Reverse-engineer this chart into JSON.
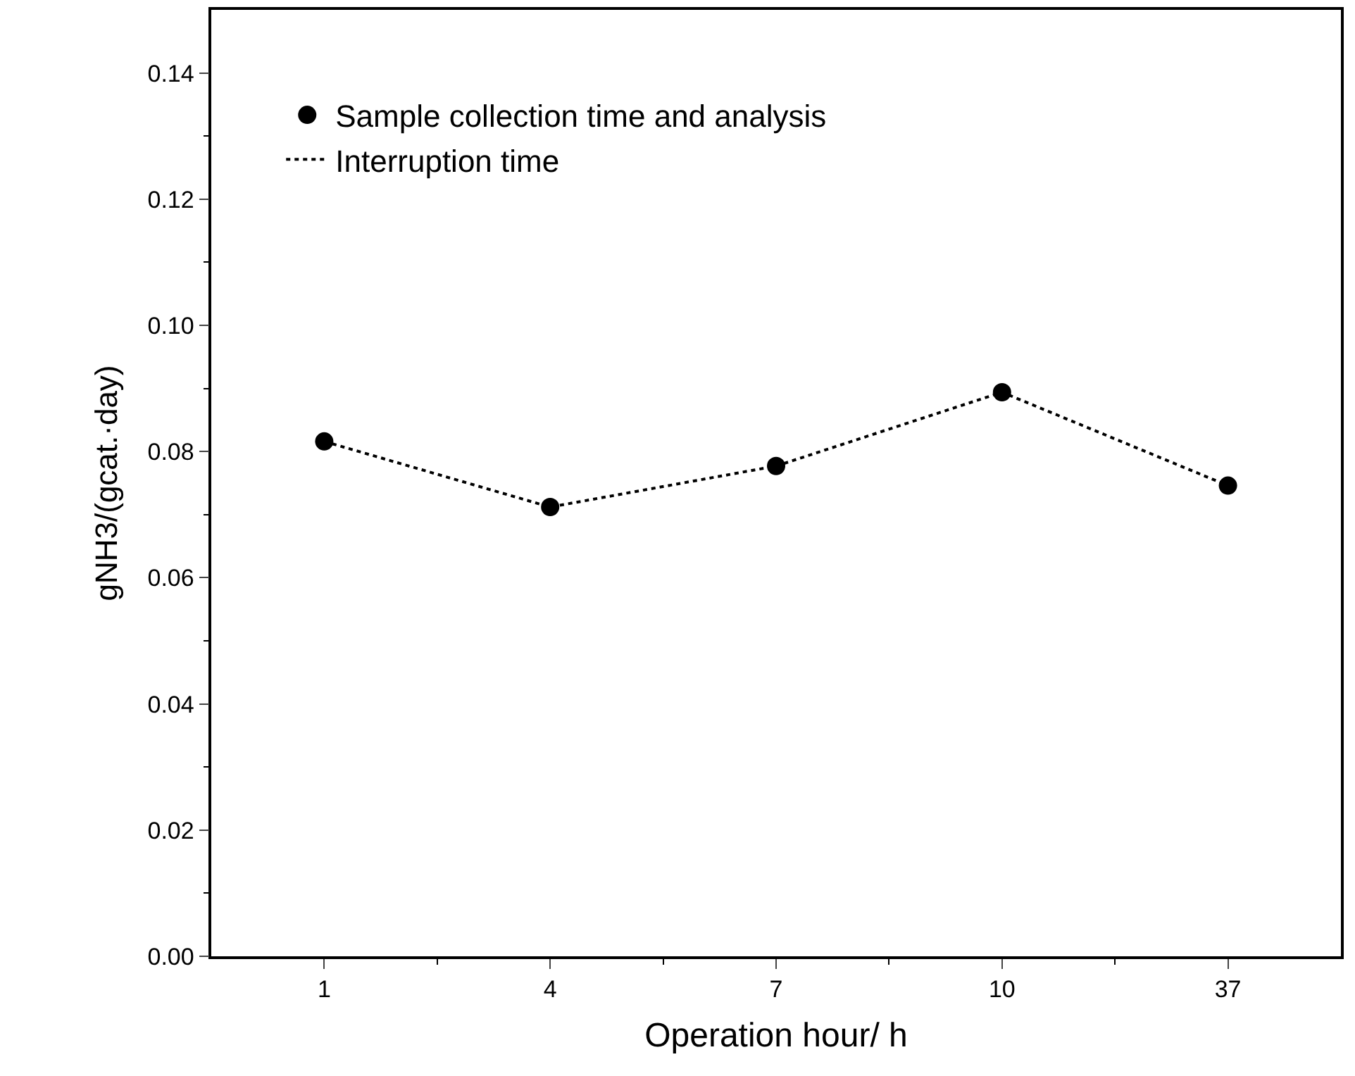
{
  "chart_data": {
    "type": "line",
    "xlabel": "Operation hour/ h",
    "ylabel": "gNH3/(gcat.·day)",
    "categories": [
      "1",
      "4",
      "7",
      "10",
      "37"
    ],
    "series": [
      {
        "name": "Sample collection time and analysis",
        "type": "scatter",
        "color": "#000000",
        "marker": "circle",
        "values": [
          0.0816,
          0.0712,
          0.0777,
          0.0894,
          0.0746
        ]
      },
      {
        "name": "Interruption time",
        "color": "#000000",
        "line_style": "dotted",
        "marker": "none",
        "values": [
          0.0816,
          0.0712,
          0.0777,
          0.0894,
          0.0746
        ]
      }
    ],
    "ylim": [
      0,
      0.15
    ],
    "yticks": [
      {
        "value": 0,
        "label": "0.00"
      },
      {
        "value": 0.02,
        "label": "0.02"
      },
      {
        "value": 0.04,
        "label": "0.04"
      },
      {
        "value": 0.06,
        "label": "0.06"
      },
      {
        "value": 0.08,
        "label": "0.08"
      },
      {
        "value": 0.1,
        "label": "0.10"
      },
      {
        "value": 0.12,
        "label": "0.12"
      },
      {
        "value": 0.14,
        "label": "0.14"
      }
    ],
    "legend": "top left"
  }
}
